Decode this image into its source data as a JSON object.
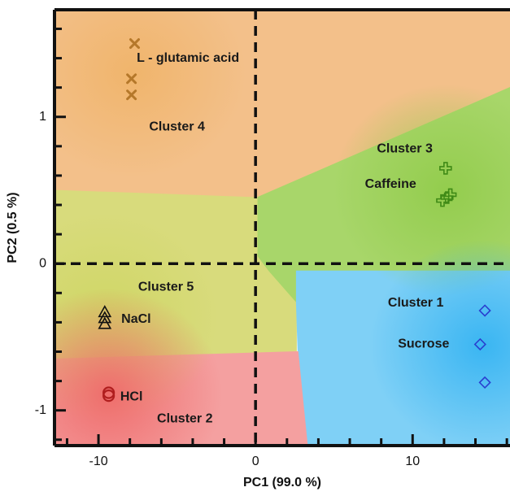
{
  "chart_data": {
    "type": "scatter",
    "xlabel": "PC1 (99.0 %)",
    "ylabel": "PC2 (0.5 %)",
    "xlim": [
      -12.8,
      16.2
    ],
    "ylim": [
      -1.24,
      1.73
    ],
    "x_ticks": [
      -10,
      0,
      10
    ],
    "y_ticks": [
      -1,
      0,
      1
    ],
    "x_tick_labels": [
      "-10",
      "0",
      "10"
    ],
    "y_tick_labels": [
      "-1",
      "0",
      "1"
    ],
    "grid": false,
    "reference_lines": {
      "x": 0,
      "y": 0,
      "style": "dashed"
    },
    "series": [
      {
        "name": "L - glutamic acid",
        "marker": "x",
        "color": "#b5782a",
        "points": [
          [
            -7.7,
            1.5
          ],
          [
            -7.9,
            1.26
          ],
          [
            -7.9,
            1.15
          ]
        ],
        "cluster": "Cluster 4",
        "region_color": "#f0b46a"
      },
      {
        "name": "Caffeine",
        "marker": "plus",
        "color": "#3f8a16",
        "points": [
          [
            12.1,
            0.65
          ],
          [
            12.4,
            0.47
          ],
          [
            11.9,
            0.43
          ],
          [
            12.2,
            0.45
          ]
        ],
        "cluster": "Cluster 3",
        "region_color": "#92cc4c"
      },
      {
        "name": "Sucrose",
        "marker": "diamond",
        "color": "#2a3fcf",
        "points": [
          [
            14.6,
            -0.32
          ],
          [
            14.3,
            -0.55
          ],
          [
            14.6,
            -0.81
          ]
        ],
        "cluster": "Cluster 1",
        "region_color": "#36b4f2"
      },
      {
        "name": "NaCl",
        "marker": "triangle",
        "color": "#111111",
        "points": [
          [
            -9.6,
            -0.33
          ],
          [
            -9.6,
            -0.37
          ],
          [
            -9.6,
            -0.41
          ]
        ],
        "cluster": "Cluster 5",
        "region_color": "#cfd664"
      },
      {
        "name": "HCl",
        "marker": "circle",
        "color": "#b01e1e",
        "points": [
          [
            -9.35,
            -0.88
          ],
          [
            -9.35,
            -0.9
          ]
        ],
        "cluster": "Cluster 2",
        "region_color": "#ef6a6a"
      }
    ],
    "clusters": [
      {
        "label": "Cluster 4",
        "x": -5.0,
        "y": 0.93
      },
      {
        "label": "Cluster 3",
        "x": 9.5,
        "y": 0.78
      },
      {
        "label": "Cluster 5",
        "x": -5.7,
        "y": -0.16
      },
      {
        "label": "Cluster 1",
        "x": 10.2,
        "y": -0.27
      },
      {
        "label": "Cluster 2",
        "x": -4.5,
        "y": -1.06
      }
    ],
    "point_labels": [
      {
        "text": "L - glutamic acid",
        "x": -4.3,
        "y": 1.4
      },
      {
        "text": "Caffeine",
        "x": 8.6,
        "y": 0.54
      },
      {
        "text": "NaCl",
        "x": -7.6,
        "y": -0.38
      },
      {
        "text": "Sucrose",
        "x": 10.7,
        "y": -0.55
      },
      {
        "text": "HCl",
        "x": -7.9,
        "y": -0.91
      }
    ],
    "regions": [
      {
        "cluster": "Cluster 4",
        "color": "#f3c08a",
        "polygon": [
          [
            -12.8,
            1.73
          ],
          [
            16.2,
            1.73
          ],
          [
            16.2,
            1.2
          ],
          [
            0.1,
            0.45
          ],
          [
            -12.8,
            0.5
          ]
        ]
      },
      {
        "cluster": "Cluster 3",
        "color": "#a8d66a",
        "polygon": [
          [
            0.1,
            0.45
          ],
          [
            16.2,
            1.2
          ],
          [
            16.2,
            -0.05
          ],
          [
            2.6,
            -0.05
          ],
          [
            2.6,
            -0.27
          ],
          [
            0.8,
            -0.05
          ],
          [
            0.1,
            0.05
          ]
        ]
      },
      {
        "cluster": "Cluster 5",
        "color": "#d8db7c",
        "polygon": [
          [
            -12.8,
            0.5
          ],
          [
            0.1,
            0.45
          ],
          [
            0.1,
            0.05
          ],
          [
            0.8,
            -0.05
          ],
          [
            2.6,
            -0.27
          ],
          [
            2.6,
            -0.6
          ],
          [
            -12.8,
            -0.65
          ]
        ]
      },
      {
        "cluster": "Cluster 1",
        "color": "#7fd0f6",
        "polygon": [
          [
            2.6,
            -0.27
          ],
          [
            2.6,
            -0.05
          ],
          [
            16.2,
            -0.05
          ],
          [
            16.2,
            -1.24
          ],
          [
            3.3,
            -1.24
          ],
          [
            2.7,
            -0.6
          ]
        ]
      },
      {
        "cluster": "Cluster 2",
        "color": "#f4a0a0",
        "polygon": [
          [
            -12.8,
            -0.65
          ],
          [
            2.6,
            -0.6
          ],
          [
            2.7,
            -0.6
          ],
          [
            3.3,
            -1.24
          ],
          [
            -12.8,
            -1.24
          ]
        ]
      }
    ]
  }
}
